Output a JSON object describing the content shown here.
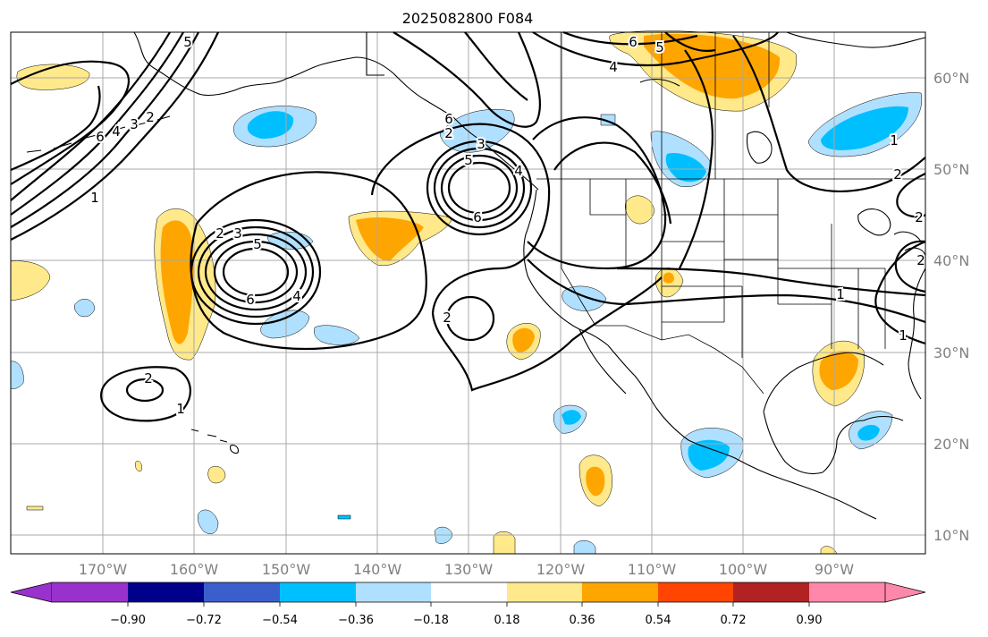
{
  "title": "2025082800 F084",
  "map": {
    "lon_labels": [
      "170°W",
      "160°W",
      "150°W",
      "140°W",
      "130°W",
      "120°W",
      "110°W",
      "100°W",
      "90°W"
    ],
    "lat_labels": [
      "60°N",
      "50°N",
      "40°N",
      "30°N",
      "20°N",
      "10°N"
    ],
    "contour_labels": [
      "5",
      "6",
      "4",
      "3",
      "2",
      "1",
      "6",
      "4",
      "3",
      "2",
      "2",
      "5",
      "6",
      "4",
      "2",
      "3",
      "5",
      "6",
      "4",
      "5",
      "2",
      "6",
      "2",
      "1",
      "1",
      "2",
      "2",
      "1",
      "1"
    ]
  },
  "colorbar": {
    "tick_labels": [
      "−0.90",
      "−0.72",
      "−0.54",
      "−0.36",
      "−0.18",
      "0.18",
      "0.36",
      "0.54",
      "0.72",
      "0.90"
    ],
    "colors": [
      "#9932cc",
      "#00008b",
      "#3a5fcd",
      "#00bfff",
      "#b0e0ff",
      "#ffffff",
      "#ffe98a",
      "#ffa500",
      "#ff4500",
      "#b22222",
      "#ff88aa"
    ]
  }
}
